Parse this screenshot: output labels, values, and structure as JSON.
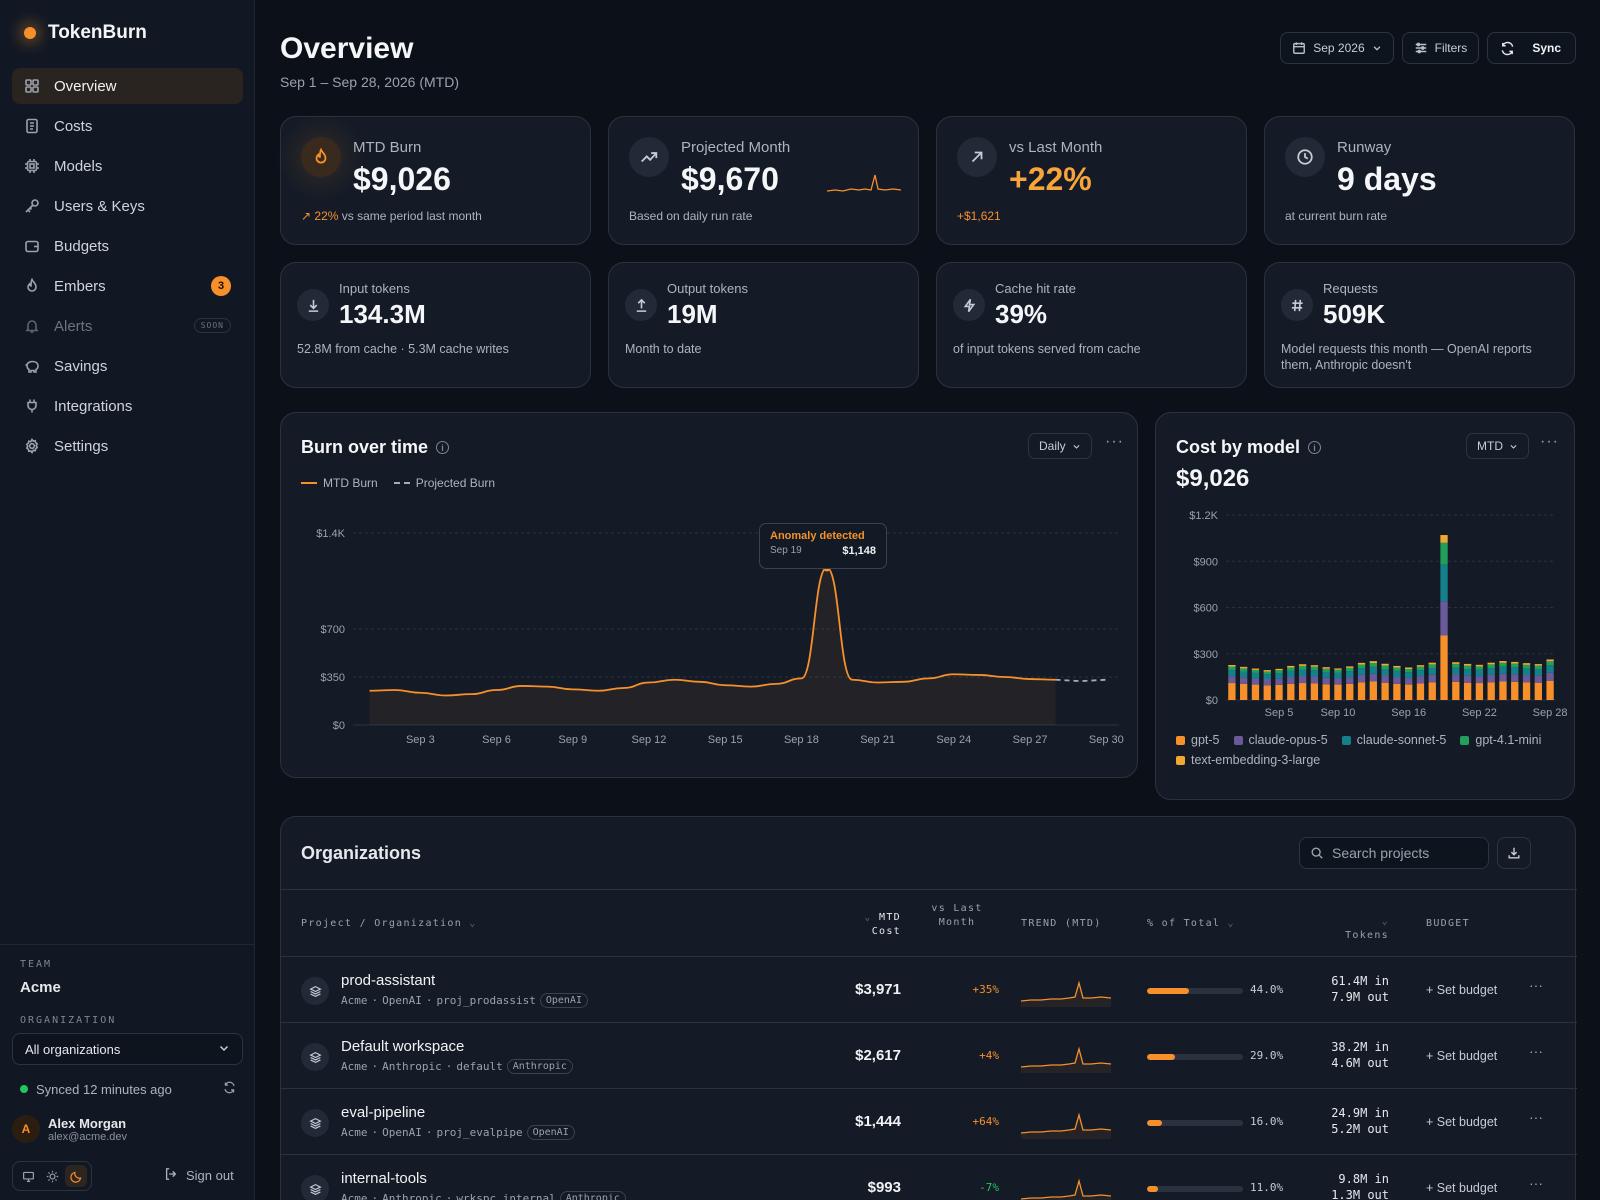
{
  "app": {
    "brand": "TokenBurn"
  },
  "sidebar": {
    "items": [
      {
        "label": "Overview",
        "icon": "grid-icon"
      },
      {
        "label": "Costs",
        "icon": "receipt-icon"
      },
      {
        "label": "Models",
        "icon": "chip-icon"
      },
      {
        "label": "Users & Keys",
        "icon": "key-icon"
      },
      {
        "label": "Budgets",
        "icon": "wallet-icon"
      },
      {
        "label": "Embers",
        "icon": "flame-icon",
        "badge": "3"
      },
      {
        "label": "Alerts",
        "icon": "bell-icon",
        "tag": "SOON"
      },
      {
        "label": "Savings",
        "icon": "piggy-icon"
      },
      {
        "label": "Integrations",
        "icon": "plug-icon"
      },
      {
        "label": "Settings",
        "icon": "gear-icon"
      }
    ],
    "team_label": "TEAM",
    "team_name": "Acme",
    "org_label": "ORGANIZATION",
    "org_value": "All organizations",
    "synced": "Synced 12 minutes ago",
    "user": {
      "initial": "A",
      "name": "Alex Morgan",
      "email": "alex@acme.dev"
    },
    "sign_out": "Sign out"
  },
  "header": {
    "title": "Overview",
    "subtitle": "Sep 1 – Sep 28, 2026 (MTD)",
    "period": "Sep 2026",
    "filters": "Filters",
    "sync": "Sync"
  },
  "kpis": [
    {
      "label": "MTD Burn",
      "value": "$9,026",
      "foot_up": "22%",
      "foot": "vs same period last month"
    },
    {
      "label": "Projected Month",
      "value": "$9,670",
      "foot": "Based on daily run rate"
    },
    {
      "label": "vs Last Month",
      "value": "+22%",
      "foot": "+$1,621"
    },
    {
      "label": "Runway",
      "value": "9 days",
      "foot": "at current burn rate"
    }
  ],
  "stats": [
    {
      "label": "Input tokens",
      "value": "134.3M",
      "foot": "52.8M from cache · 5.3M cache writes"
    },
    {
      "label": "Output tokens",
      "value": "19M",
      "foot": "Month to date"
    },
    {
      "label": "Cache hit rate",
      "value": "39%",
      "foot": "of input tokens served from cache"
    },
    {
      "label": "Requests",
      "value": "509K",
      "foot": "Model requests this month — OpenAI reports them, Anthropic doesn't"
    }
  ],
  "burn_panel": {
    "title": "Burn over time",
    "granularity": "Daily",
    "legend_mtd": "MTD Burn",
    "legend_proj": "Projected Burn",
    "anomaly_title": "Anomaly detected",
    "anomaly_date": "Sep 19",
    "anomaly_value": "$1,148"
  },
  "model_panel": {
    "title": "Cost by model",
    "period": "MTD",
    "total": "$9,026"
  },
  "orgs": {
    "title": "Organizations",
    "search_placeholder": "Search projects",
    "headers": {
      "project": "Project / Organization",
      "cost": "MTD Cost",
      "vs": "vs Last Month",
      "trend": "TREND (MTD)",
      "pct": "% of Total",
      "tokens": "Tokens",
      "budget": "BUDGET"
    },
    "rows": [
      {
        "name": "prod-assistant",
        "org": "Acme",
        "provider": "OpenAI",
        "id": "proj_prodassist",
        "cost": "$3,971",
        "delta": "+35%",
        "pct_label": "44.0%",
        "pct": 44.0,
        "tok_in": "61.4M in",
        "tok_out": "7.9M out",
        "budget": "+ Set budget"
      },
      {
        "name": "Default workspace",
        "org": "Acme",
        "provider": "Anthropic",
        "id": "default",
        "cost": "$2,617",
        "delta": "+4%",
        "pct_label": "29.0%",
        "pct": 29.0,
        "tok_in": "38.2M in",
        "tok_out": "4.6M out",
        "budget": "+ Set budget"
      },
      {
        "name": "eval-pipeline",
        "org": "Acme",
        "provider": "OpenAI",
        "id": "proj_evalpipe",
        "cost": "$1,444",
        "delta": "+64%",
        "pct_label": "16.0%",
        "pct": 16.0,
        "tok_in": "24.9M in",
        "tok_out": "5.2M out",
        "budget": "+ Set budget"
      },
      {
        "name": "internal-tools",
        "org": "Acme",
        "provider": "Anthropic",
        "id": "wrkspc_internal",
        "cost": "$993",
        "delta": "-7%",
        "pct_label": "11.0%",
        "pct": 11.0,
        "tok_in": "9.8M in",
        "tok_out": "1.3M out",
        "budget": "+ Set budget"
      }
    ]
  },
  "colors": {
    "accent": "#f7902a",
    "gpt5": "#f7902a",
    "opus": "#6b5a9a",
    "sonnet": "#14808a",
    "mini": "#22a05a",
    "embed": "#f0a830"
  },
  "chart_data": [
    {
      "type": "line",
      "title": "Burn over time",
      "x_ticks": [
        "Sep 3",
        "Sep 6",
        "Sep 9",
        "Sep 12",
        "Sep 15",
        "Sep 18",
        "Sep 21",
        "Sep 24",
        "Sep 27",
        "Sep 30"
      ],
      "y_ticks": [
        "$0",
        "$350",
        "$700",
        "$1.4K"
      ],
      "y_tick_values": [
        0,
        350,
        700,
        1400
      ],
      "ylim": [
        0,
        1400
      ],
      "series": [
        {
          "name": "MTD Burn",
          "x": [
            1,
            2,
            3,
            4,
            5,
            6,
            7,
            8,
            9,
            10,
            11,
            12,
            13,
            14,
            15,
            16,
            17,
            18,
            19,
            20,
            21,
            22,
            23,
            24,
            25,
            26,
            27,
            28
          ],
          "y": [
            250,
            255,
            235,
            215,
            225,
            255,
            285,
            280,
            260,
            250,
            270,
            310,
            330,
            315,
            290,
            280,
            300,
            340,
            1148,
            330,
            310,
            315,
            340,
            370,
            365,
            350,
            335,
            330
          ]
        },
        {
          "name": "Projected Burn",
          "x": [
            28,
            29,
            30
          ],
          "y": [
            330,
            320,
            330
          ]
        }
      ],
      "annotation": {
        "label": "Anomaly detected",
        "x": 19,
        "value": "$1,148"
      }
    },
    {
      "type": "bar",
      "stacked": true,
      "title": "Cost by model",
      "x_ticks": [
        "Sep 5",
        "Sep 10",
        "Sep 16",
        "Sep 22",
        "Sep 28"
      ],
      "y_ticks": [
        "$0",
        "$300",
        "$600",
        "$900",
        "$1.2K"
      ],
      "y_tick_values": [
        0,
        300,
        600,
        900,
        1200
      ],
      "ylim": [
        0,
        1200
      ],
      "categories": [
        1,
        2,
        3,
        4,
        5,
        6,
        7,
        8,
        9,
        10,
        11,
        12,
        13,
        14,
        15,
        16,
        17,
        18,
        19,
        20,
        21,
        22,
        23,
        24,
        25,
        26,
        27,
        28
      ],
      "series": [
        {
          "name": "gpt-5",
          "color": "#f7902a",
          "values": [
            110,
            105,
            100,
            95,
            98,
            105,
            110,
            108,
            102,
            100,
            105,
            115,
            120,
            112,
            105,
            100,
            108,
            115,
            420,
            118,
            112,
            110,
            115,
            120,
            118,
            115,
            112,
            125
          ]
        },
        {
          "name": "claude-opus-5",
          "color": "#6b5a9a",
          "values": [
            45,
            42,
            40,
            38,
            40,
            44,
            46,
            45,
            42,
            40,
            43,
            48,
            50,
            47,
            44,
            42,
            45,
            48,
            220,
            48,
            46,
            45,
            48,
            50,
            49,
            47,
            46,
            52
          ]
        },
        {
          "name": "claude-sonnet-5",
          "color": "#14808a",
          "values": [
            40,
            38,
            36,
            34,
            36,
            40,
            42,
            41,
            38,
            36,
            39,
            43,
            45,
            42,
            40,
            38,
            41,
            44,
            240,
            44,
            42,
            41,
            44,
            46,
            45,
            43,
            42,
            48
          ]
        },
        {
          "name": "gpt-4.1-mini",
          "color": "#22a05a",
          "values": [
            22,
            20,
            19,
            18,
            19,
            22,
            23,
            22,
            21,
            20,
            21,
            24,
            25,
            23,
            22,
            21,
            22,
            24,
            140,
            24,
            23,
            22,
            24,
            25,
            24,
            23,
            23,
            26
          ]
        },
        {
          "name": "text-embedding-3-large",
          "color": "#f0a830",
          "values": [
            10,
            10,
            9,
            9,
            9,
            10,
            11,
            10,
            10,
            9,
            10,
            11,
            12,
            11,
            10,
            10,
            10,
            11,
            50,
            11,
            11,
            10,
            11,
            12,
            11,
            11,
            10,
            12
          ]
        }
      ]
    }
  ]
}
